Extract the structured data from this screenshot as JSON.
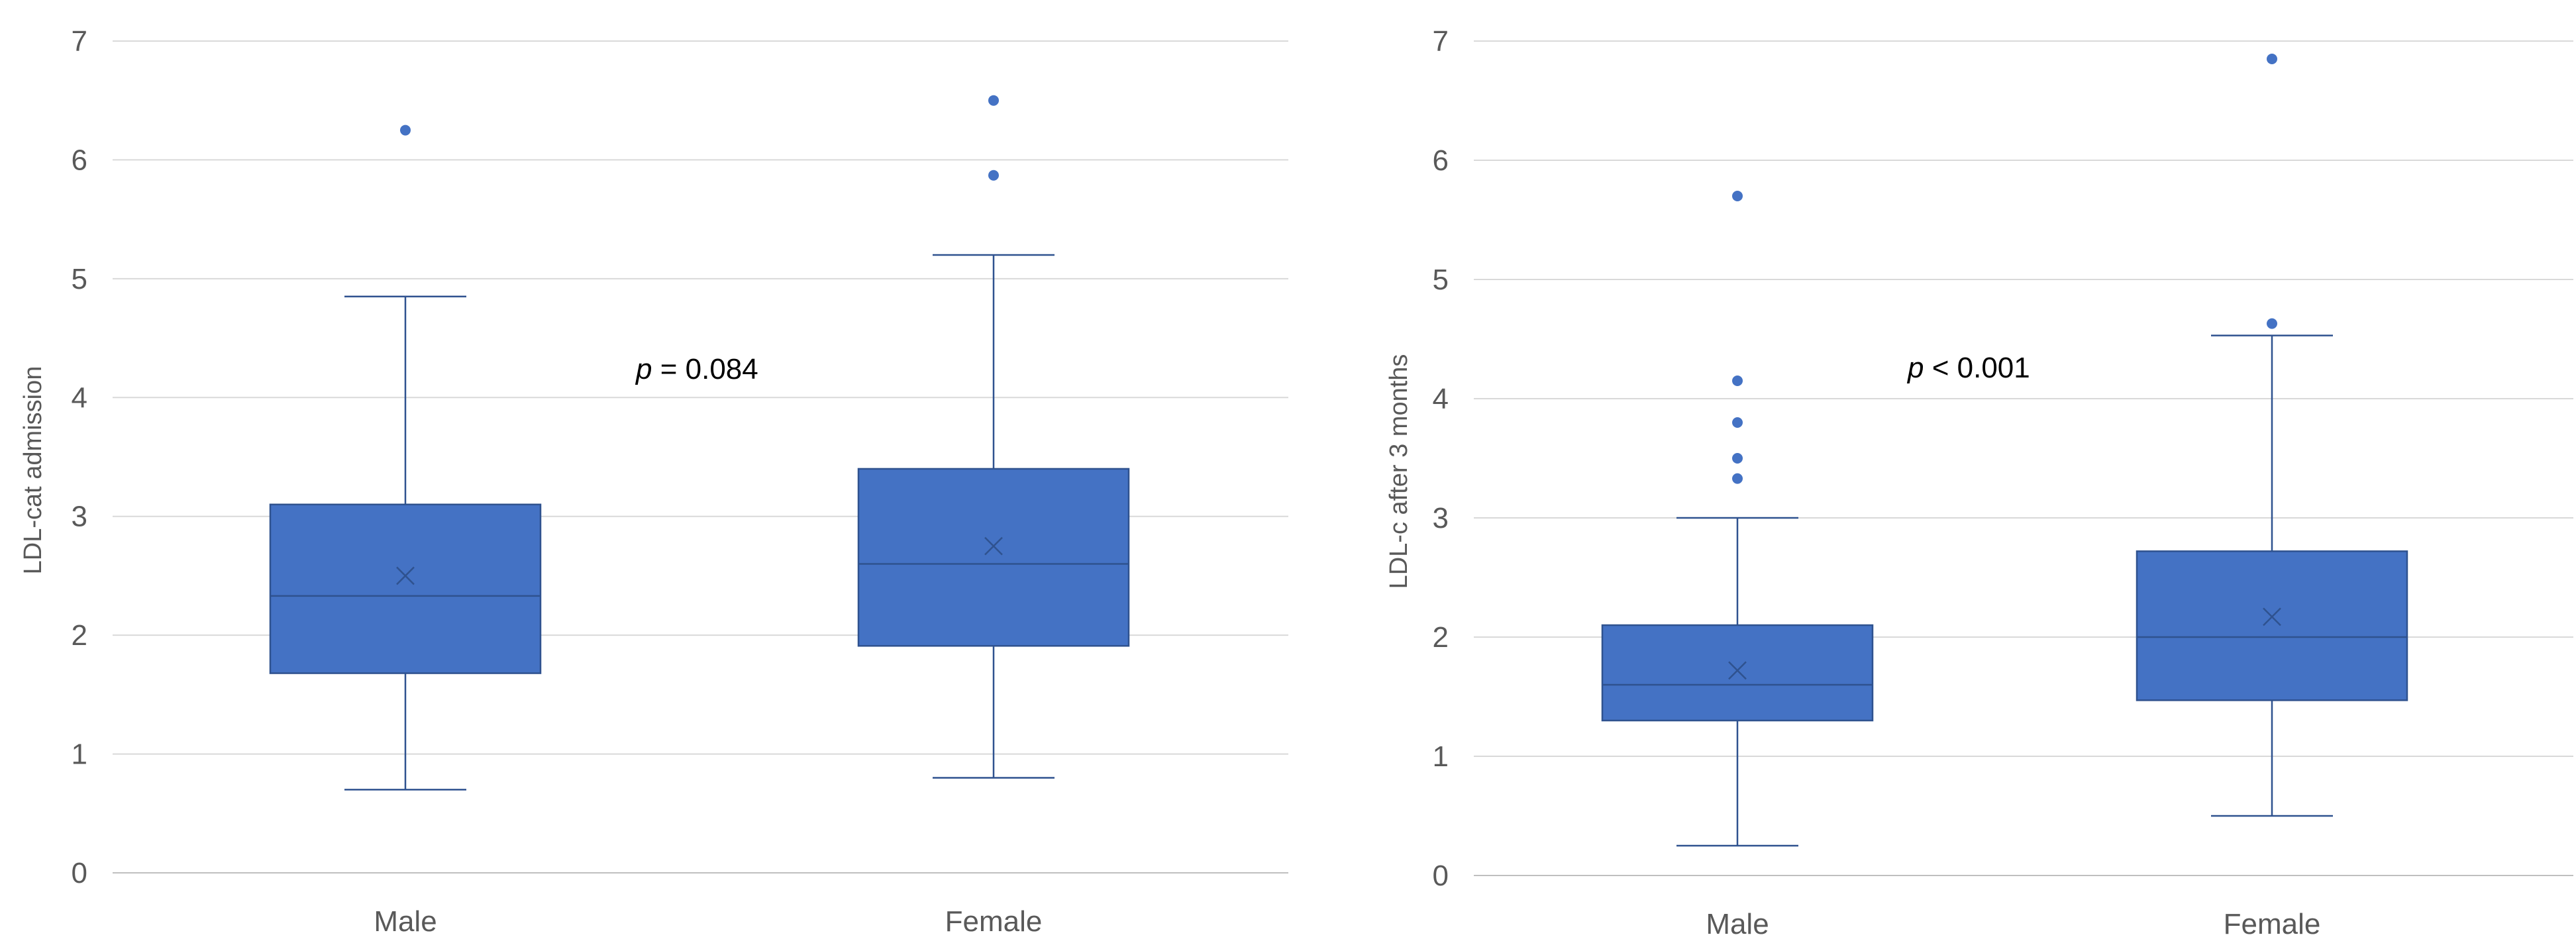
{
  "chart_data": [
    {
      "type": "box",
      "title": "",
      "ylabel": "LDL-cat admission",
      "xlabel": "",
      "ylim": [
        0,
        7
      ],
      "yticks": [
        0,
        1,
        2,
        3,
        4,
        5,
        6,
        7
      ],
      "grid": true,
      "annotation": {
        "p_symbol": "p",
        "text": " = 0.084"
      },
      "categories": [
        "Male",
        "Female"
      ],
      "boxes": [
        {
          "category": "Male",
          "min": 0.7,
          "q1": 1.68,
          "median": 2.33,
          "q3": 3.1,
          "max": 4.85,
          "mean": 2.5,
          "outliers": [
            6.25
          ]
        },
        {
          "category": "Female",
          "min": 0.8,
          "q1": 1.91,
          "median": 2.6,
          "q3": 3.4,
          "max": 5.2,
          "mean": 2.75,
          "outliers": [
            5.87,
            6.5
          ]
        }
      ]
    },
    {
      "type": "box",
      "title": "",
      "ylabel": "LDL-c after 3 months",
      "xlabel": "",
      "ylim": [
        0,
        7
      ],
      "yticks": [
        0,
        1,
        2,
        3,
        4,
        5,
        6,
        7
      ],
      "grid": true,
      "annotation": {
        "p_symbol": "p",
        "text": " < 0.001"
      },
      "categories": [
        "Male",
        "Female"
      ],
      "boxes": [
        {
          "category": "Male",
          "min": 0.25,
          "q1": 1.3,
          "median": 1.6,
          "q3": 2.1,
          "max": 3.0,
          "mean": 1.72,
          "outliers": [
            3.33,
            3.5,
            3.8,
            4.15,
            5.7
          ]
        },
        {
          "category": "Female",
          "min": 0.5,
          "q1": 1.47,
          "median": 2.0,
          "q3": 2.72,
          "max": 4.53,
          "mean": 2.17,
          "outliers": [
            4.63,
            6.85
          ]
        }
      ]
    }
  ],
  "colors": {
    "box_fill": "#4472C4",
    "box_stroke": "#2F528F",
    "whisker": "#2F528F",
    "outlier": "#4472C4",
    "mean_marker": "#2F528F",
    "grid": "#D9D9D9",
    "text": "#595959"
  }
}
